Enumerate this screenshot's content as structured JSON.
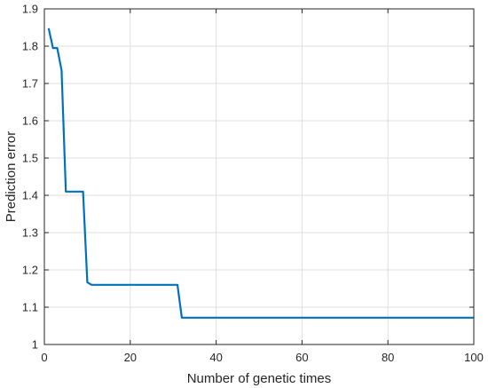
{
  "chart_data": {
    "type": "line",
    "title": "",
    "xlabel": "Number of genetic times",
    "ylabel": "Prediction error",
    "xlim": [
      0,
      100
    ],
    "ylim": [
      1,
      1.9
    ],
    "xticks": [
      0,
      20,
      40,
      60,
      80,
      100
    ],
    "xtick_labels": [
      "0",
      "20",
      "40",
      "60",
      "80",
      "100"
    ],
    "yticks": [
      1,
      1.1,
      1.2,
      1.3,
      1.4,
      1.5,
      1.6,
      1.7,
      1.8,
      1.9
    ],
    "ytick_labels": [
      "1",
      "1.1",
      "1.2",
      "1.3",
      "1.4",
      "1.5",
      "1.6",
      "1.7",
      "1.8",
      "1.9"
    ],
    "grid": true,
    "series": [
      {
        "color": "#0072BD",
        "x": [
          1,
          2,
          3,
          4,
          5,
          6,
          7,
          8,
          9,
          10,
          11,
          12,
          20,
          30,
          31,
          32,
          33,
          50,
          75,
          100
        ],
        "y": [
          1.848,
          1.795,
          1.795,
          1.735,
          1.41,
          1.41,
          1.41,
          1.41,
          1.41,
          1.167,
          1.16,
          1.16,
          1.16,
          1.16,
          1.16,
          1.072,
          1.072,
          1.072,
          1.072,
          1.072
        ]
      }
    ]
  }
}
